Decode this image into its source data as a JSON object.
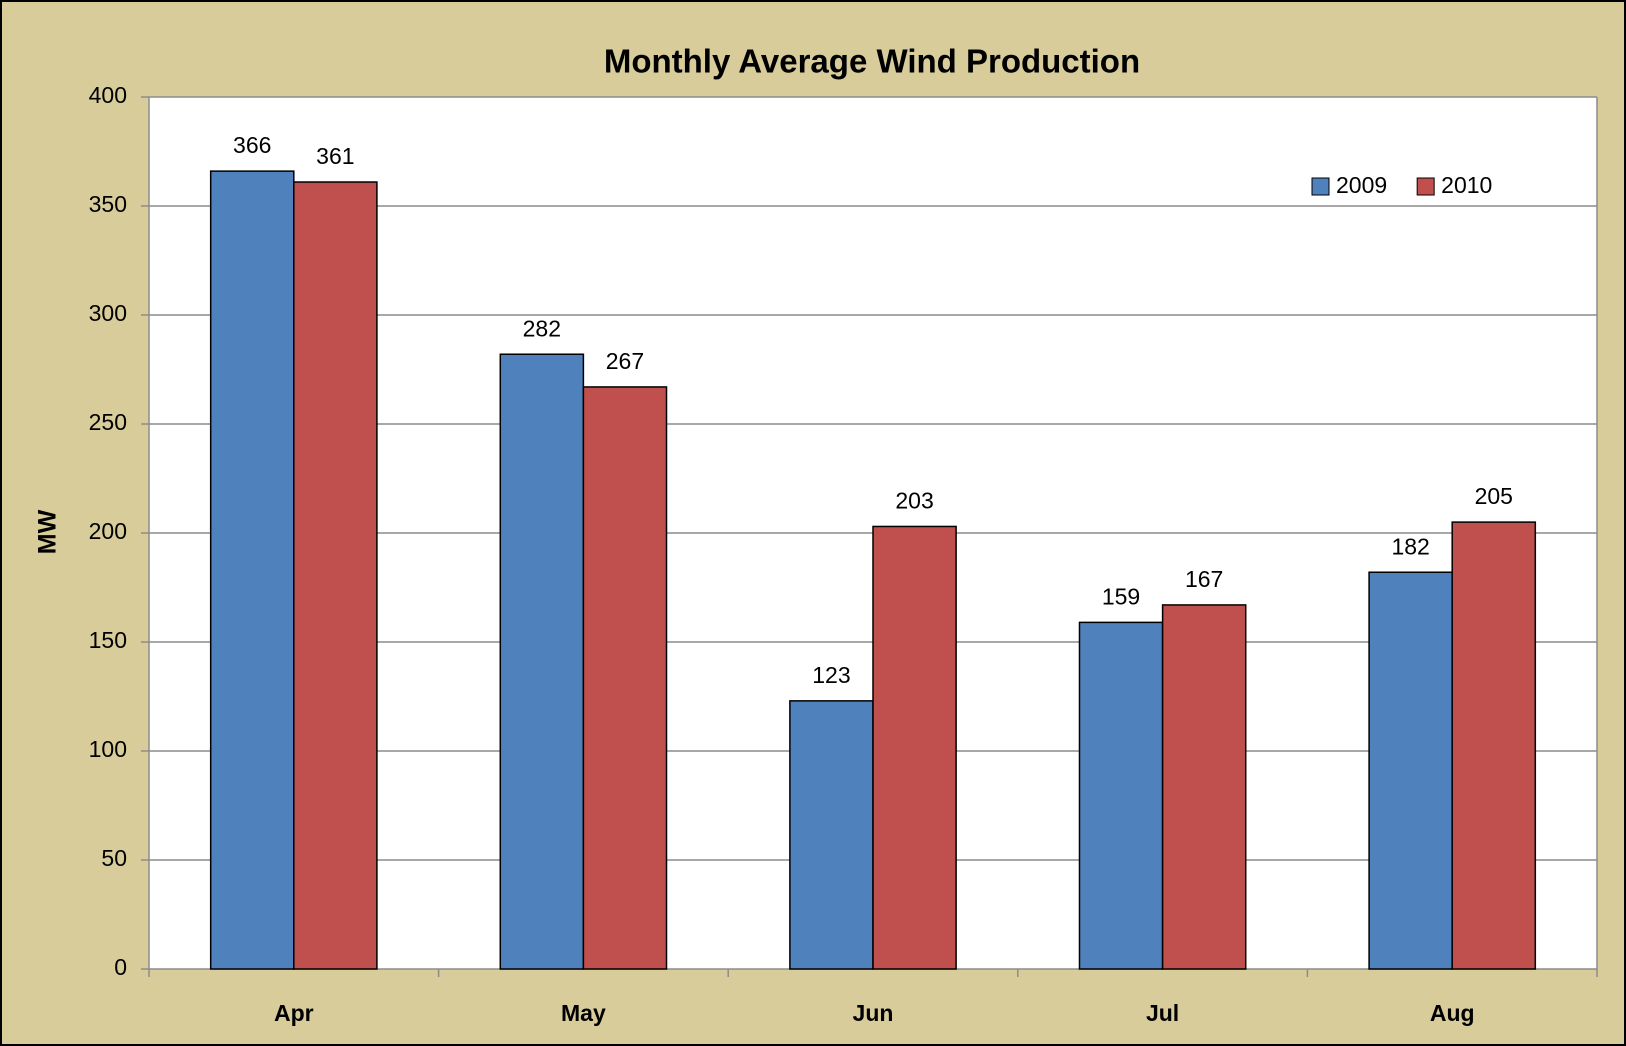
{
  "chart_data": {
    "type": "bar",
    "title": "Monthly Average Wind Production",
    "y_label": "MW",
    "categories": [
      "Apr",
      "May",
      "Jun",
      "Jul",
      "Aug"
    ],
    "series": [
      {
        "name": "2009",
        "color": "#4f81bd",
        "values": [
          366,
          282,
          123,
          159,
          182
        ]
      },
      {
        "name": "2010",
        "color": "#c0504d",
        "values": [
          361,
          267,
          203,
          167,
          205
        ]
      }
    ],
    "ylim": [
      0,
      400
    ],
    "yticks": [
      0,
      50,
      100,
      150,
      200,
      250,
      300,
      350,
      400
    ],
    "grid": true,
    "legend": "upper right"
  }
}
